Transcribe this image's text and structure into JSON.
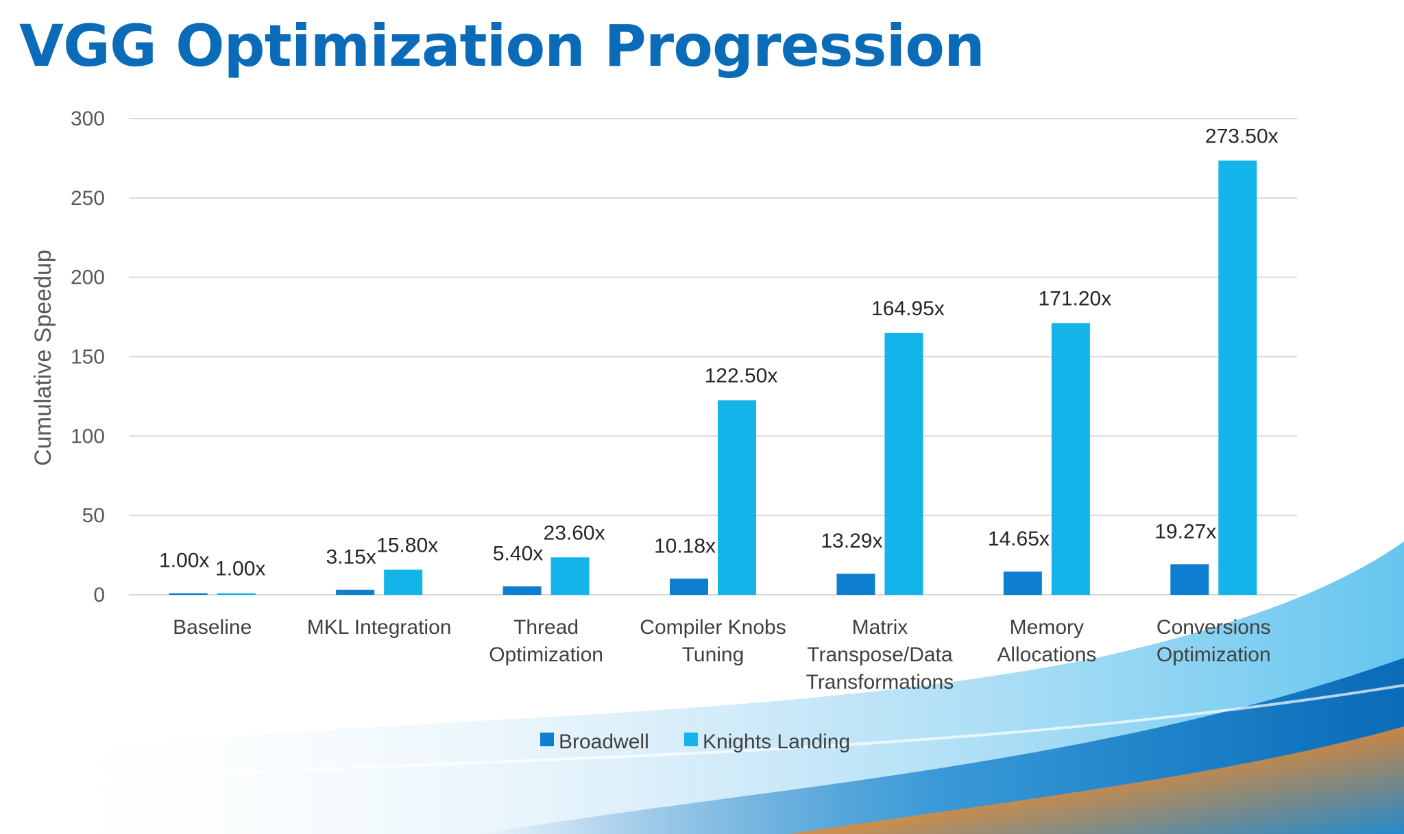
{
  "slide": {
    "title": "VGG Optimization Progression"
  },
  "colors": {
    "broadwell": "#0e7fd0",
    "knights_landing": "#12b4ea",
    "title": "#0a6bb8",
    "grid": "#d9d9d9",
    "tick_text": "#595959",
    "wave_dark": "#0a6bb8",
    "wave_light": "#5cc2ee"
  },
  "chart_data": {
    "type": "bar",
    "title": "VGG Optimization Progression",
    "xlabel": "",
    "ylabel": "Cumulative Speedup",
    "ylim": [
      0,
      300
    ],
    "yticks": [
      0,
      50,
      100,
      150,
      200,
      250,
      300
    ],
    "grid": true,
    "legend_position": "bottom-center",
    "categories": [
      [
        "Baseline"
      ],
      [
        "MKL Integration"
      ],
      [
        "Thread",
        "Optimization"
      ],
      [
        "Compiler Knobs",
        "Tuning"
      ],
      [
        "Matrix",
        "Transpose/Data",
        "Transformations"
      ],
      [
        "Memory",
        "Allocations"
      ],
      [
        "Conversions",
        "Optimization"
      ]
    ],
    "series": [
      {
        "name": "Broadwell",
        "values": [
          1.0,
          3.15,
          5.4,
          10.18,
          13.29,
          14.65,
          19.27
        ],
        "labels": [
          "1.00x",
          "3.15x",
          "5.40x",
          "10.18x",
          "13.29x",
          "14.65x",
          "19.27x"
        ]
      },
      {
        "name": "Knights Landing",
        "values": [
          1.0,
          15.8,
          23.6,
          122.5,
          164.95,
          171.2,
          273.5
        ],
        "labels": [
          "1.00x",
          "15.80x",
          "23.60x",
          "122.50x",
          "164.95x",
          "171.20x",
          "273.50x"
        ]
      }
    ]
  }
}
